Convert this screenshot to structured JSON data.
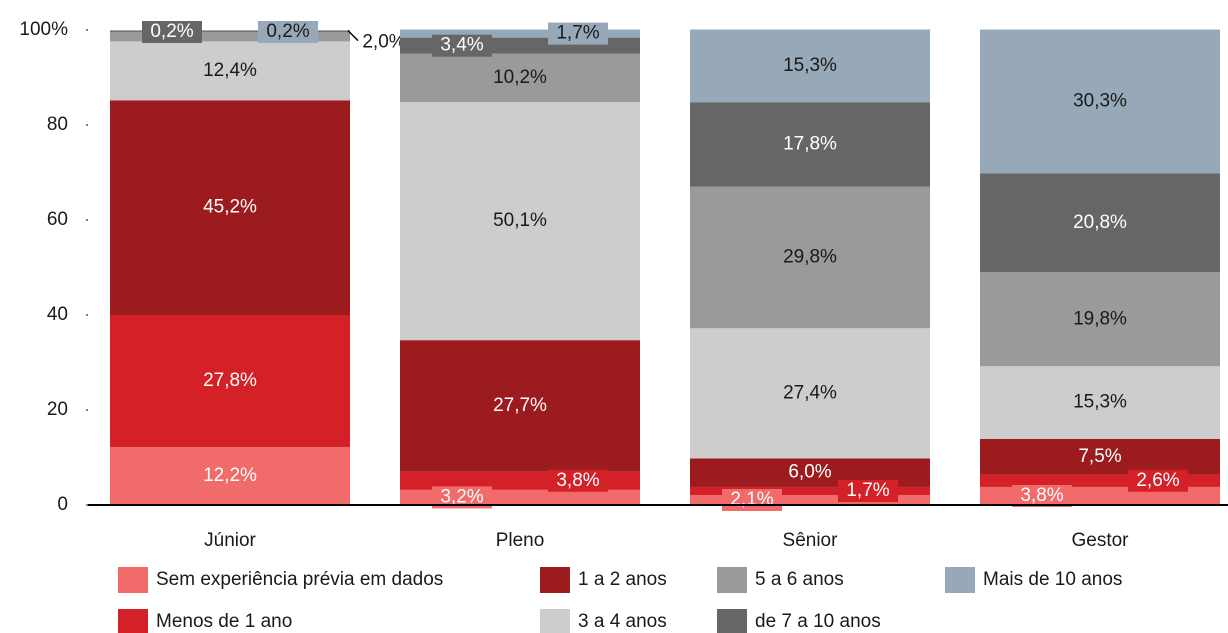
{
  "chart_data": {
    "type": "stacked_bar",
    "categories": [
      "Júnior",
      "Pleno",
      "Sênior",
      "Gestor"
    ],
    "series": [
      {
        "name": "Sem experiência prévia em dados",
        "color": "#f26b6b",
        "values": [
          12.2,
          3.2,
          2.1,
          3.8
        ],
        "value_labels": [
          "12,2%",
          "3,2%",
          "2,1%",
          "3,8%"
        ]
      },
      {
        "name": "Menos de 1 ano",
        "color": "#d42027",
        "values": [
          27.8,
          3.8,
          1.7,
          2.6
        ],
        "value_labels": [
          "27,8%",
          "3,8%",
          "1,7%",
          "2,6%"
        ]
      },
      {
        "name": "1 a 2 anos",
        "color": "#9c1b1f",
        "values": [
          45.2,
          27.7,
          6.0,
          7.5
        ],
        "value_labels": [
          "45,2%",
          "27,7%",
          "6,0%",
          "7,5%"
        ]
      },
      {
        "name": "3 a 4 anos",
        "color": "#cdcdcd",
        "values": [
          12.4,
          50.1,
          27.4,
          15.3
        ],
        "value_labels": [
          "12,4%",
          "50,1%",
          "27,4%",
          "15,3%"
        ]
      },
      {
        "name": "5 a 6 anos",
        "color": "#9a9a9a",
        "values": [
          2.0,
          10.2,
          29.8,
          19.8
        ],
        "value_labels": [
          "2,0%",
          "10,2%",
          "29,8%",
          "19,8%"
        ]
      },
      {
        "name": "de 7 a 10 anos",
        "color": "#666666",
        "values": [
          0.2,
          3.4,
          17.8,
          20.8
        ],
        "value_labels": [
          "0,2%",
          "3,4%",
          "17,8%",
          "20,8%"
        ]
      },
      {
        "name": "Mais de 10 anos",
        "color": "#97a9b9",
        "values": [
          0.2,
          1.7,
          15.3,
          30.3
        ],
        "value_labels": [
          "0,2%",
          "1,7%",
          "15,3%",
          "30,3%"
        ]
      }
    ],
    "ylim": [
      0,
      100
    ],
    "yticks": [
      0,
      20,
      40,
      60,
      80,
      {
        "value": 100,
        "label": "100%"
      }
    ],
    "grid": false
  }
}
